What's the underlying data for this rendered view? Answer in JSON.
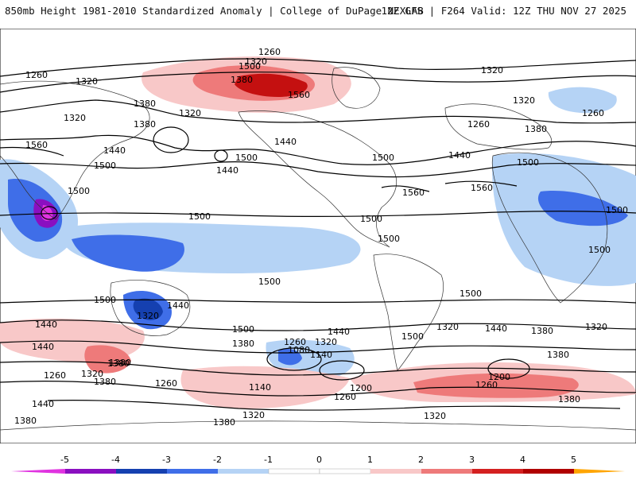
{
  "header": {
    "title_left": "850mb Height 1981-2010 Standardized Anomaly | College of DuPage NEXLAB",
    "title_right": "12Z GFS | F264 Valid: 12Z THU NOV 27 2025"
  },
  "map": {
    "field": "850mb geopotential height (dam) with standardized anomaly shading",
    "contour_labels": [
      {
        "id": "c1",
        "text": "1260"
      },
      {
        "id": "c2",
        "text": "1320"
      },
      {
        "id": "c3",
        "text": "1380"
      },
      {
        "id": "c4",
        "text": "1500"
      },
      {
        "id": "c5",
        "text": "1560"
      },
      {
        "id": "c6",
        "text": "1260"
      },
      {
        "id": "c7",
        "text": "1320"
      },
      {
        "id": "c8",
        "text": "1320"
      },
      {
        "id": "c9",
        "text": "1380"
      },
      {
        "id": "c10",
        "text": "1320"
      },
      {
        "id": "c11",
        "text": "1380"
      },
      {
        "id": "c12",
        "text": "1440"
      },
      {
        "id": "c13",
        "text": "1560"
      },
      {
        "id": "c14",
        "text": "1500"
      },
      {
        "id": "c15",
        "text": "1500"
      },
      {
        "id": "c16",
        "text": "1440"
      },
      {
        "id": "c17",
        "text": "1440"
      },
      {
        "id": "c18",
        "text": "1500"
      },
      {
        "id": "c19",
        "text": "1560"
      },
      {
        "id": "c20",
        "text": "1320"
      },
      {
        "id": "c21",
        "text": "1320"
      },
      {
        "id": "c22",
        "text": "1260"
      },
      {
        "id": "c23",
        "text": "1380"
      },
      {
        "id": "c24",
        "text": "1260"
      },
      {
        "id": "c25",
        "text": "1440"
      },
      {
        "id": "c26",
        "text": "1560"
      },
      {
        "id": "c27",
        "text": "1500"
      },
      {
        "id": "c28",
        "text": "1500"
      },
      {
        "id": "c29",
        "text": "1500"
      },
      {
        "id": "c30",
        "text": "1500"
      },
      {
        "id": "c31",
        "text": "1500"
      },
      {
        "id": "c32",
        "text": "1500"
      },
      {
        "id": "c33",
        "text": "1500"
      },
      {
        "id": "c34",
        "text": "1500"
      },
      {
        "id": "c35",
        "text": "1500"
      },
      {
        "id": "c36",
        "text": "1440"
      },
      {
        "id": "c37",
        "text": "1320"
      },
      {
        "id": "c38",
        "text": "1500"
      },
      {
        "id": "c39",
        "text": "1440"
      },
      {
        "id": "c40",
        "text": "1380"
      },
      {
        "id": "c41",
        "text": "1260"
      },
      {
        "id": "c42",
        "text": "1320"
      },
      {
        "id": "c43",
        "text": "1080"
      },
      {
        "id": "c44",
        "text": "1140"
      },
      {
        "id": "c45",
        "text": "1440"
      },
      {
        "id": "c46",
        "text": "1500"
      },
      {
        "id": "c47",
        "text": "1500"
      },
      {
        "id": "c48",
        "text": "1320"
      },
      {
        "id": "c49",
        "text": "1440"
      },
      {
        "id": "c50",
        "text": "1380"
      },
      {
        "id": "c51",
        "text": "1320"
      },
      {
        "id": "c52",
        "text": "1200"
      },
      {
        "id": "c53",
        "text": "1260"
      },
      {
        "id": "c54",
        "text": "1380"
      },
      {
        "id": "c55",
        "text": "1140"
      },
      {
        "id": "c56",
        "text": "1200"
      },
      {
        "id": "c57",
        "text": "1260"
      },
      {
        "id": "c58",
        "text": "1320"
      },
      {
        "id": "c59",
        "text": "1380"
      },
      {
        "id": "c60",
        "text": "1320"
      },
      {
        "id": "c61",
        "text": "1380"
      },
      {
        "id": "c62",
        "text": "1440"
      },
      {
        "id": "c63",
        "text": "1380"
      },
      {
        "id": "c64",
        "text": "1260"
      },
      {
        "id": "c65",
        "text": "1320"
      },
      {
        "id": "c66",
        "text": "1380"
      },
      {
        "id": "c67",
        "text": "1260"
      },
      {
        "id": "c68",
        "text": "1440"
      },
      {
        "id": "c69",
        "text": "1380"
      },
      {
        "id": "c70",
        "text": "1380"
      }
    ]
  },
  "colorbar": {
    "label_values": [
      "-5",
      "-4",
      "-3",
      "-2",
      "-1",
      "0",
      "1",
      "2",
      "3",
      "4",
      "5"
    ],
    "colors": {
      "neg5": "#e033e0",
      "neg4": "#8a0fc0",
      "neg3": "#1540b0",
      "neg2": "#3f6ee8",
      "neg1": "#b5d3f5",
      "zero": "#ffffff",
      "pos1": "#f8c8c8",
      "pos2": "#ee7a7a",
      "pos3": "#d42020",
      "pos4": "#b00000",
      "pos5": "#ffa500"
    }
  }
}
